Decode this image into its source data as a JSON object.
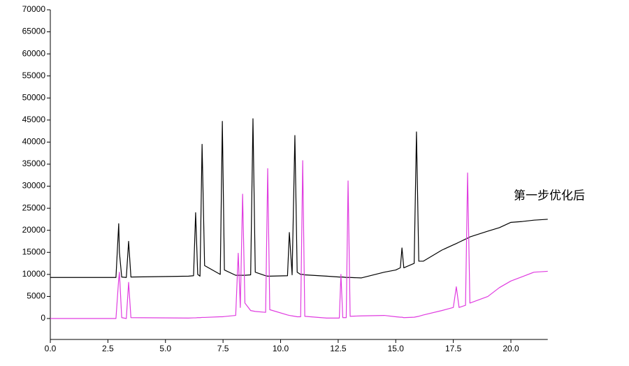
{
  "chart_data": {
    "type": "line",
    "annotation": "第一步优化后",
    "x": [
      0,
      2.85,
      2.97,
      3.0,
      3.1,
      3.3,
      3.4,
      3.5,
      6.0,
      6.22,
      6.31,
      6.4,
      6.5,
      6.59,
      6.7,
      7.38,
      7.47,
      7.56,
      8.05,
      8.16,
      8.25,
      8.35,
      8.45,
      8.7,
      8.8,
      8.9,
      9.35,
      9.44,
      9.53,
      10.3,
      10.38,
      10.5,
      10.62,
      10.72,
      10.87,
      10.96,
      11.05,
      12.0,
      12.55,
      12.62,
      12.7,
      12.85,
      12.93,
      13.02,
      13.5,
      14.5,
      15.0,
      15.2,
      15.27,
      15.35,
      15.8,
      15.9,
      16.0,
      16.2,
      17.0,
      17.5,
      17.63,
      17.75,
      18.03,
      18.12,
      18.22,
      19.0,
      19.5,
      20.0,
      20.5,
      21.0,
      21.6
    ],
    "series": [
      {
        "color": "#000000",
        "values": [
          9300,
          9300,
          21500,
          15000,
          9400,
          9300,
          17500,
          9400,
          9600,
          9700,
          24000,
          10000,
          9600,
          39500,
          12000,
          10000,
          44700,
          11000,
          9800,
          9800,
          9800,
          9800,
          9800,
          9900,
          45300,
          10500,
          9700,
          9600,
          9600,
          9700,
          19500,
          9900,
          41500,
          10500,
          10000,
          10000,
          9900,
          9600,
          9400,
          9400,
          9400,
          9300,
          9300,
          9300,
          9200,
          10500,
          11000,
          11500,
          16000,
          11500,
          12500,
          42300,
          13000,
          13000,
          15500,
          16700,
          17000,
          17300,
          18000,
          18200,
          18500,
          19800,
          20600,
          21800,
          22000,
          22300,
          22500
        ]
      },
      {
        "color": "#e03ce0",
        "values": [
          0,
          0,
          9000,
          10500,
          200,
          0,
          8200,
          200,
          100,
          150,
          150,
          200,
          200,
          250,
          250,
          400,
          400,
          450,
          700,
          14800,
          2500,
          28200,
          3500,
          1800,
          1700,
          1600,
          1400,
          34000,
          2000,
          800,
          700,
          600,
          500,
          400,
          400,
          35800,
          500,
          100,
          100,
          10000,
          200,
          200,
          31200,
          500,
          600,
          700,
          400,
          300,
          300,
          200,
          300,
          400,
          500,
          800,
          1800,
          2500,
          7200,
          2500,
          3000,
          33000,
          3500,
          5000,
          7000,
          8500,
          9500,
          10500,
          10700
        ]
      }
    ],
    "xlim": [
      0,
      21.6
    ],
    "xticks": [
      {
        "value": 0,
        "label": "0.0"
      },
      2.5,
      {
        "value": 5,
        "label": "5.0"
      },
      7.5,
      {
        "value": 10,
        "label": "10.0"
      },
      12.5,
      {
        "value": 15,
        "label": "15.0"
      },
      17.5,
      {
        "value": 20,
        "label": "20.0"
      }
    ],
    "ylim": [
      -4750,
      70000
    ],
    "yticks": [
      0,
      5000,
      10000,
      15000,
      20000,
      25000,
      30000,
      35000,
      40000,
      45000,
      50000,
      55000,
      60000,
      65000,
      70000
    ]
  }
}
